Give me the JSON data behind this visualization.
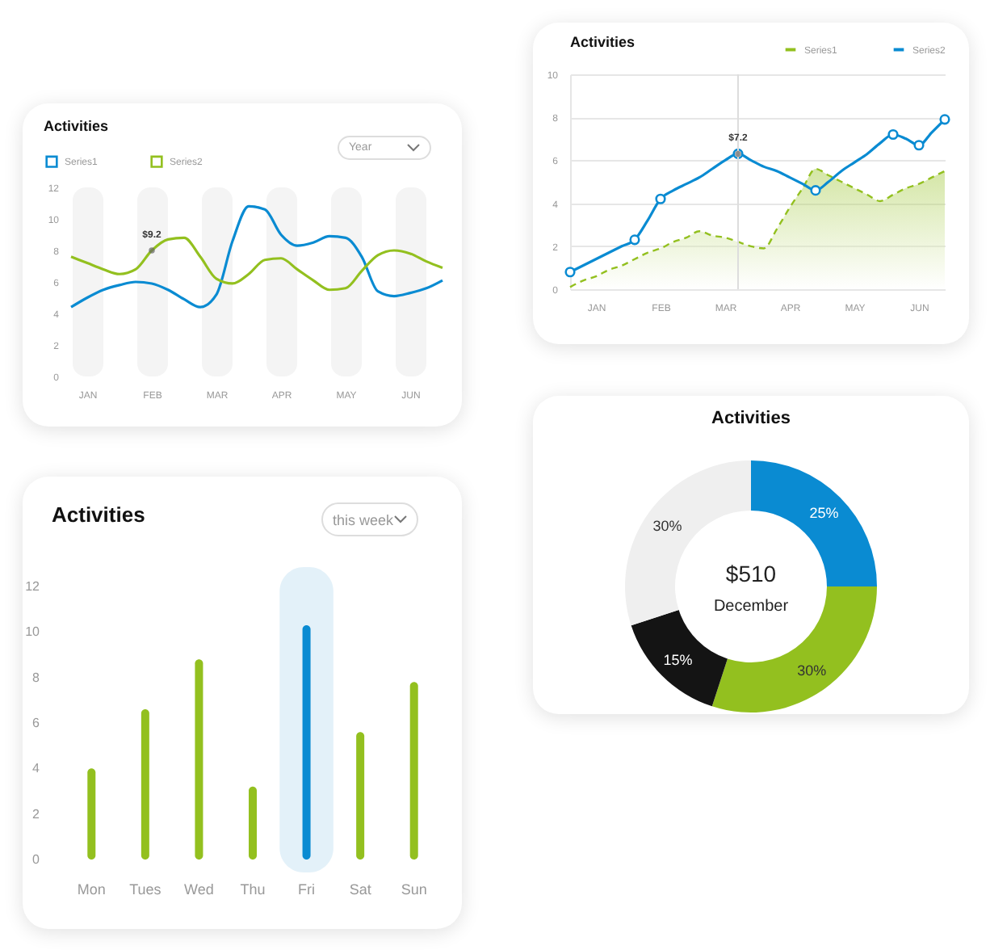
{
  "chart_data": [
    {
      "type": "line",
      "title": "Activities",
      "categories": [
        null,
        "JAN",
        null,
        null,
        null,
        "FEB",
        null,
        null,
        null,
        "MAR",
        null,
        null,
        null,
        "APR",
        null,
        null,
        null,
        "MAY",
        null,
        null,
        null,
        "JUN",
        null,
        null
      ],
      "ylim": [
        0,
        12
      ],
      "yticks": [
        0,
        2,
        4,
        6,
        8,
        10,
        12
      ],
      "legend": "top left",
      "series": [
        {
          "name": "Series1",
          "color": "#0a8bd2",
          "values": [
            4.4,
            5.0,
            5.5,
            5.8,
            6.0,
            5.9,
            5.5,
            4.9,
            4.4,
            5.2,
            8.6,
            10.8,
            10.6,
            9.0,
            8.3,
            8.5,
            8.9,
            8.8,
            7.6,
            5.4,
            5.1,
            5.3,
            5.6,
            6.1
          ]
        },
        {
          "name": "Series2",
          "color": "#93c01f",
          "values": [
            7.6,
            7.2,
            6.8,
            6.5,
            6.8,
            8.0,
            8.7,
            8.8,
            7.6,
            6.2,
            5.9,
            6.5,
            7.4,
            7.5,
            6.8,
            6.1,
            5.5,
            5.6,
            6.7,
            7.7,
            8.0,
            7.8,
            7.3,
            6.9
          ]
        }
      ],
      "annotations": [
        "Year",
        {
          "text": "$9.2",
          "x": "FEB",
          "y": 8.0
        }
      ]
    },
    {
      "type": "line",
      "title": "Activities",
      "categories": [
        null,
        null,
        "JAN",
        null,
        null,
        null,
        null,
        "FEB",
        null,
        null,
        null,
        null,
        "MAR",
        null,
        null,
        null,
        null,
        "APR",
        null,
        null,
        null,
        null,
        "MAY",
        null,
        null,
        null,
        null,
        "JUN",
        null,
        null
      ],
      "ylim": [
        0,
        10
      ],
      "yticks": [
        0,
        2,
        4,
        6,
        8,
        10
      ],
      "grid": "y",
      "legend": "top right",
      "series": [
        {
          "name": "Series1",
          "type": "area",
          "color": "#93c01f",
          "line_style": "dashed",
          "values": [
            0.1,
            0.4,
            0.6,
            0.9,
            1.1,
            1.4,
            1.7,
            1.9,
            2.2,
            2.4,
            2.7,
            2.5,
            2.4,
            2.2,
            2.0,
            1.9,
            2.8,
            3.8,
            4.7,
            5.6,
            5.3,
            5.0,
            4.7,
            4.4,
            4.1,
            4.4,
            4.7,
            4.9,
            5.2,
            5.5
          ]
        },
        {
          "name": "Series2",
          "color": "#0a8bd2",
          "values": [
            0.8,
            1.1,
            1.4,
            1.7,
            2.0,
            2.3,
            3.2,
            4.2,
            4.6,
            4.9,
            5.2,
            5.6,
            6.0,
            6.3,
            6.0,
            5.7,
            5.5,
            5.2,
            4.9,
            4.6,
            5.0,
            5.5,
            5.9,
            6.3,
            6.8,
            7.2,
            7.0,
            6.7,
            7.3,
            7.9
          ]
        },
        {
          "type": "scatter",
          "marker": "circle",
          "color": "#0a8bd2",
          "values": [
            0.8,
            null,
            null,
            null,
            null,
            2.3,
            null,
            4.2,
            null,
            null,
            null,
            null,
            null,
            6.3,
            null,
            null,
            null,
            null,
            null,
            4.6,
            null,
            null,
            null,
            null,
            null,
            7.2,
            null,
            6.7,
            null,
            7.9
          ]
        }
      ],
      "annotations": [
        {
          "text": "$7.2",
          "y": 6.3
        }
      ]
    },
    {
      "type": "bar",
      "title": "Activities",
      "categories": [
        "Mon",
        "Tues",
        "Wed",
        "Thu",
        "Fri",
        "Sat",
        "Sun"
      ],
      "values": [
        4.0,
        6.6,
        8.8,
        3.2,
        10.3,
        5.6,
        7.8
      ],
      "colors": [
        "#93c01f",
        "#93c01f",
        "#93c01f",
        "#93c01f",
        "#0a8bd2",
        "#93c01f",
        "#93c01f"
      ],
      "ylim": [
        0,
        12
      ],
      "yticks": [
        0,
        2,
        4,
        6,
        8,
        10,
        12
      ],
      "bands": [
        {
          "axis": "x",
          "from": "Fri",
          "to": "Fri",
          "color": "#e3f1f9"
        }
      ],
      "annotations": [
        "this week"
      ]
    },
    {
      "type": "donut",
      "title": "Activities",
      "categories": [
        null,
        null,
        null,
        null
      ],
      "values": [
        25,
        30,
        15,
        30
      ],
      "colors": [
        "#0a8bd2",
        "#93c01f",
        "#141414",
        "#efefef"
      ],
      "value_labels": [
        "25%",
        "30%",
        "15%",
        "30%"
      ],
      "annotations": [
        "$510",
        "December"
      ]
    }
  ]
}
